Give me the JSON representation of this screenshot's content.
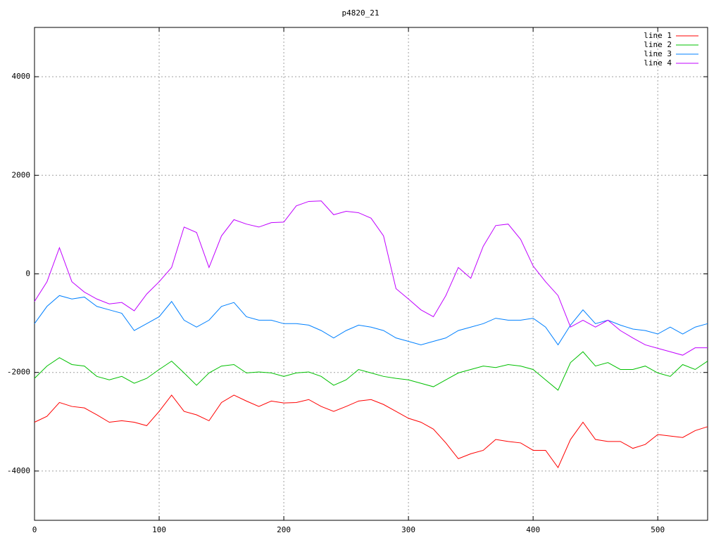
{
  "chart_data": {
    "type": "line",
    "title": "p4820_21",
    "x": [
      0,
      10,
      20,
      30,
      40,
      50,
      60,
      70,
      80,
      90,
      100,
      110,
      120,
      130,
      140,
      150,
      160,
      170,
      180,
      190,
      200,
      210,
      220,
      230,
      240,
      250,
      260,
      270,
      280,
      290,
      300,
      310,
      320,
      330,
      340,
      350,
      360,
      370,
      380,
      390,
      400,
      410,
      420,
      430,
      440,
      450,
      460,
      470,
      480,
      490,
      500,
      510,
      520,
      530,
      540
    ],
    "series": [
      {
        "name": "line 1",
        "color": "#ff0000",
        "values": [
          -3010,
          -2890,
          -2610,
          -2690,
          -2720,
          -2860,
          -3010,
          -2980,
          -3010,
          -3080,
          -2790,
          -2460,
          -2790,
          -2860,
          -2980,
          -2610,
          -2460,
          -2580,
          -2690,
          -2580,
          -2620,
          -2610,
          -2550,
          -2690,
          -2790,
          -2690,
          -2580,
          -2550,
          -2650,
          -2790,
          -2930,
          -3010,
          -3150,
          -3430,
          -3750,
          -3650,
          -3580,
          -3360,
          -3400,
          -3430,
          -3580,
          -3580,
          -3930,
          -3360,
          -3010,
          -3360,
          -3400,
          -3400,
          -3540,
          -3460,
          -3260,
          -3290,
          -3320,
          -3180,
          -3100
        ]
      },
      {
        "name": "line 2",
        "color": "#00c000",
        "values": [
          -2120,
          -1870,
          -1700,
          -1840,
          -1870,
          -2080,
          -2150,
          -2080,
          -2220,
          -2120,
          -1940,
          -1770,
          -2010,
          -2260,
          -2010,
          -1870,
          -1840,
          -2010,
          -1990,
          -2010,
          -2080,
          -2010,
          -1990,
          -2080,
          -2260,
          -2150,
          -1940,
          -2010,
          -2080,
          -2120,
          -2150,
          -2220,
          -2290,
          -2150,
          -2010,
          -1940,
          -1870,
          -1900,
          -1840,
          -1870,
          -1940,
          -2150,
          -2360,
          -1800,
          -1580,
          -1870,
          -1800,
          -1940,
          -1940,
          -1870,
          -2010,
          -2080,
          -1840,
          -1940,
          -1770
        ]
      },
      {
        "name": "line 3",
        "color": "#0080ff",
        "values": [
          -1010,
          -660,
          -440,
          -510,
          -470,
          -660,
          -730,
          -800,
          -1150,
          -1010,
          -870,
          -560,
          -940,
          -1080,
          -940,
          -660,
          -580,
          -870,
          -940,
          -940,
          -1010,
          -1010,
          -1040,
          -1150,
          -1300,
          -1150,
          -1040,
          -1080,
          -1150,
          -1300,
          -1370,
          -1440,
          -1370,
          -1300,
          -1150,
          -1080,
          -1010,
          -900,
          -940,
          -940,
          -900,
          -1080,
          -1440,
          -1040,
          -730,
          -1010,
          -940,
          -1040,
          -1120,
          -1150,
          -1220,
          -1080,
          -1220,
          -1080,
          -1010
        ]
      },
      {
        "name": "line 4",
        "color": "#c000ff",
        "values": [
          -560,
          -160,
          530,
          -160,
          -370,
          -510,
          -610,
          -580,
          -750,
          -410,
          -160,
          130,
          950,
          840,
          130,
          770,
          1100,
          1010,
          950,
          1040,
          1050,
          1380,
          1470,
          1480,
          1200,
          1270,
          1240,
          1130,
          770,
          -300,
          -510,
          -730,
          -870,
          -440,
          130,
          -90,
          560,
          980,
          1010,
          700,
          160,
          -160,
          -440,
          -1080,
          -940,
          -1080,
          -940,
          -1150,
          -1300,
          -1440,
          -1510,
          -1580,
          -1650,
          -1500,
          -1500
        ]
      }
    ],
    "xlim": [
      0,
      540
    ],
    "xticks": [
      0,
      100,
      200,
      300,
      400,
      500
    ],
    "ylim": [
      -5000,
      5000
    ],
    "yticks": [
      -4000,
      -2000,
      0,
      2000,
      4000
    ],
    "grid": true,
    "legend": "top-right"
  }
}
